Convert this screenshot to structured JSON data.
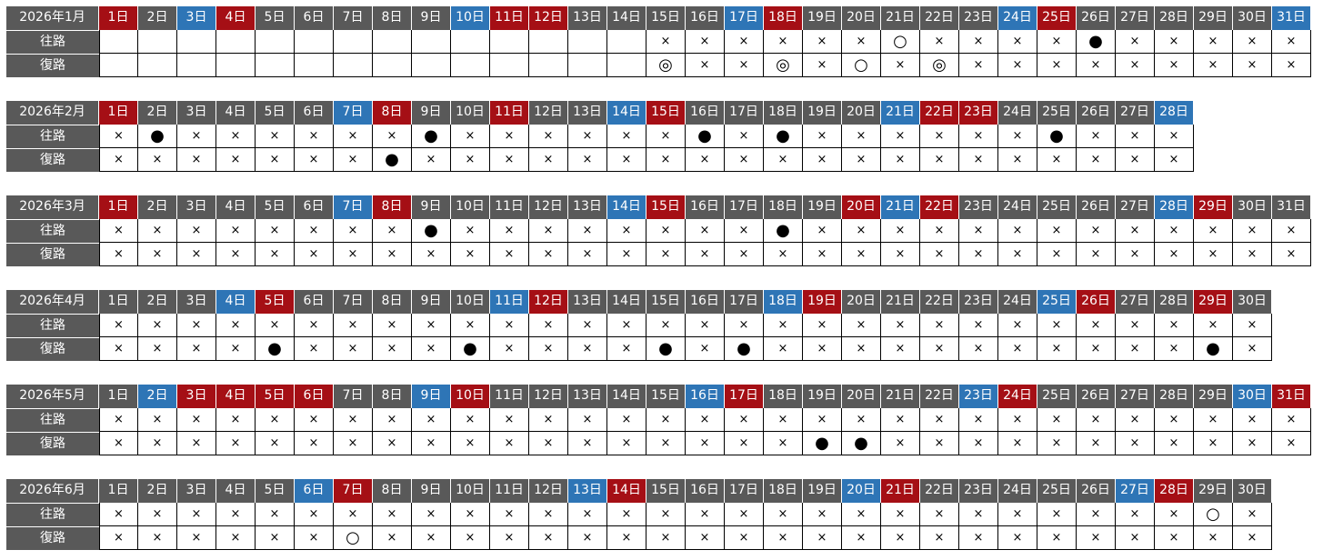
{
  "colors": {
    "weekday": "#595959",
    "saturday": "#2e75b6",
    "holiday": "#a50f15"
  },
  "months": [
    {
      "title": "2026年1月",
      "days": [
        "1日",
        "2日",
        "3日",
        "4日",
        "5日",
        "6日",
        "7日",
        "8日",
        "9日",
        "10日",
        "11日",
        "12日",
        "13日",
        "14日",
        "15日",
        "16日",
        "17日",
        "18日",
        "19日",
        "20日",
        "21日",
        "22日",
        "23日",
        "24日",
        "25日",
        "26日",
        "27日",
        "28日",
        "29日",
        "30日",
        "31日"
      ],
      "day_types": [
        "holiday",
        "weekday",
        "saturday",
        "holiday",
        "weekday",
        "weekday",
        "weekday",
        "weekday",
        "weekday",
        "saturday",
        "holiday",
        "holiday",
        "weekday",
        "weekday",
        "weekday",
        "weekday",
        "saturday",
        "holiday",
        "weekday",
        "weekday",
        "weekday",
        "weekday",
        "weekday",
        "saturday",
        "holiday",
        "weekday",
        "weekday",
        "weekday",
        "weekday",
        "weekday",
        "saturday"
      ],
      "rows": [
        {
          "label": "往路",
          "cells": [
            null,
            null,
            null,
            null,
            null,
            null,
            null,
            null,
            null,
            null,
            null,
            null,
            null,
            null,
            "×",
            "×",
            "×",
            "×",
            "×",
            "×",
            "○",
            "×",
            "×",
            "×",
            "×",
            "●",
            "×",
            "×",
            "×",
            "×",
            "×"
          ]
        },
        {
          "label": "復路",
          "cells": [
            null,
            null,
            null,
            null,
            null,
            null,
            null,
            null,
            null,
            null,
            null,
            null,
            null,
            null,
            "◎",
            "×",
            "×",
            "◎",
            "×",
            "○",
            "×",
            "◎",
            "×",
            "×",
            "×",
            "×",
            "×",
            "×",
            "×",
            "×",
            "×"
          ]
        }
      ]
    },
    {
      "title": "2026年2月",
      "days": [
        "1日",
        "2日",
        "3日",
        "4日",
        "5日",
        "6日",
        "7日",
        "8日",
        "9日",
        "10日",
        "11日",
        "12日",
        "13日",
        "14日",
        "15日",
        "16日",
        "17日",
        "18日",
        "19日",
        "20日",
        "21日",
        "22日",
        "23日",
        "24日",
        "25日",
        "26日",
        "27日",
        "28日"
      ],
      "day_types": [
        "holiday",
        "weekday",
        "weekday",
        "weekday",
        "weekday",
        "weekday",
        "saturday",
        "holiday",
        "weekday",
        "weekday",
        "holiday",
        "weekday",
        "weekday",
        "saturday",
        "holiday",
        "weekday",
        "weekday",
        "weekday",
        "weekday",
        "weekday",
        "saturday",
        "holiday",
        "holiday",
        "weekday",
        "weekday",
        "weekday",
        "weekday",
        "saturday"
      ],
      "rows": [
        {
          "label": "往路",
          "cells": [
            "×",
            "●",
            "×",
            "×",
            "×",
            "×",
            "×",
            "×",
            "●",
            "×",
            "×",
            "×",
            "×",
            "×",
            "×",
            "●",
            "×",
            "●",
            "×",
            "×",
            "×",
            "×",
            "×",
            "×",
            "●",
            "×",
            "×",
            "×"
          ]
        },
        {
          "label": "復路",
          "cells": [
            "×",
            "×",
            "×",
            "×",
            "×",
            "×",
            "×",
            "●",
            "×",
            "×",
            "×",
            "×",
            "×",
            "×",
            "×",
            "×",
            "×",
            "×",
            "×",
            "×",
            "×",
            "×",
            "×",
            "×",
            "×",
            "×",
            "×",
            "×"
          ]
        }
      ]
    },
    {
      "title": "2026年3月",
      "days": [
        "1日",
        "2日",
        "3日",
        "4日",
        "5日",
        "6日",
        "7日",
        "8日",
        "9日",
        "10日",
        "11日",
        "12日",
        "13日",
        "14日",
        "15日",
        "16日",
        "17日",
        "18日",
        "19日",
        "20日",
        "21日",
        "22日",
        "23日",
        "24日",
        "25日",
        "26日",
        "27日",
        "28日",
        "29日",
        "30日",
        "31日"
      ],
      "day_types": [
        "holiday",
        "weekday",
        "weekday",
        "weekday",
        "weekday",
        "weekday",
        "saturday",
        "holiday",
        "weekday",
        "weekday",
        "weekday",
        "weekday",
        "weekday",
        "saturday",
        "holiday",
        "weekday",
        "weekday",
        "weekday",
        "weekday",
        "holiday",
        "saturday",
        "holiday",
        "weekday",
        "weekday",
        "weekday",
        "weekday",
        "weekday",
        "saturday",
        "holiday",
        "weekday",
        "weekday"
      ],
      "rows": [
        {
          "label": "往路",
          "cells": [
            "×",
            "×",
            "×",
            "×",
            "×",
            "×",
            "×",
            "×",
            "●",
            "×",
            "×",
            "×",
            "×",
            "×",
            "×",
            "×",
            "×",
            "●",
            "×",
            "×",
            "×",
            "×",
            "×",
            "×",
            "×",
            "×",
            "×",
            "×",
            "×",
            "×",
            "×"
          ]
        },
        {
          "label": "復路",
          "cells": [
            "×",
            "×",
            "×",
            "×",
            "×",
            "×",
            "×",
            "×",
            "×",
            "×",
            "×",
            "×",
            "×",
            "×",
            "×",
            "×",
            "×",
            "×",
            "×",
            "×",
            "×",
            "×",
            "×",
            "×",
            "×",
            "×",
            "×",
            "×",
            "×",
            "×",
            "×"
          ]
        }
      ]
    },
    {
      "title": "2026年4月",
      "days": [
        "1日",
        "2日",
        "3日",
        "4日",
        "5日",
        "6日",
        "7日",
        "8日",
        "9日",
        "10日",
        "11日",
        "12日",
        "13日",
        "14日",
        "15日",
        "16日",
        "17日",
        "18日",
        "19日",
        "20日",
        "21日",
        "22日",
        "23日",
        "24日",
        "25日",
        "26日",
        "27日",
        "28日",
        "29日",
        "30日"
      ],
      "day_types": [
        "weekday",
        "weekday",
        "weekday",
        "saturday",
        "holiday",
        "weekday",
        "weekday",
        "weekday",
        "weekday",
        "weekday",
        "saturday",
        "holiday",
        "weekday",
        "weekday",
        "weekday",
        "weekday",
        "weekday",
        "saturday",
        "holiday",
        "weekday",
        "weekday",
        "weekday",
        "weekday",
        "weekday",
        "saturday",
        "holiday",
        "weekday",
        "weekday",
        "holiday",
        "weekday"
      ],
      "rows": [
        {
          "label": "往路",
          "cells": [
            "×",
            "×",
            "×",
            "×",
            "×",
            "×",
            "×",
            "×",
            "×",
            "×",
            "×",
            "×",
            "×",
            "×",
            "×",
            "×",
            "×",
            "×",
            "×",
            "×",
            "×",
            "×",
            "×",
            "×",
            "×",
            "×",
            "×",
            "×",
            "×",
            "×"
          ]
        },
        {
          "label": "復路",
          "cells": [
            "×",
            "×",
            "×",
            "×",
            "●",
            "×",
            "×",
            "×",
            "×",
            "●",
            "×",
            "×",
            "×",
            "×",
            "●",
            "×",
            "●",
            "×",
            "×",
            "×",
            "×",
            "×",
            "×",
            "×",
            "×",
            "×",
            "×",
            "×",
            "●",
            "×"
          ]
        }
      ]
    },
    {
      "title": "2026年5月",
      "days": [
        "1日",
        "2日",
        "3日",
        "4日",
        "5日",
        "6日",
        "7日",
        "8日",
        "9日",
        "10日",
        "11日",
        "12日",
        "13日",
        "14日",
        "15日",
        "16日",
        "17日",
        "18日",
        "19日",
        "20日",
        "21日",
        "22日",
        "23日",
        "24日",
        "25日",
        "26日",
        "27日",
        "28日",
        "29日",
        "30日",
        "31日"
      ],
      "day_types": [
        "weekday",
        "saturday",
        "holiday",
        "holiday",
        "holiday",
        "holiday",
        "weekday",
        "weekday",
        "saturday",
        "holiday",
        "weekday",
        "weekday",
        "weekday",
        "weekday",
        "weekday",
        "saturday",
        "holiday",
        "weekday",
        "weekday",
        "weekday",
        "weekday",
        "weekday",
        "saturday",
        "holiday",
        "weekday",
        "weekday",
        "weekday",
        "weekday",
        "weekday",
        "saturday",
        "holiday"
      ],
      "rows": [
        {
          "label": "往路",
          "cells": [
            "×",
            "×",
            "×",
            "×",
            "×",
            "×",
            "×",
            "×",
            "×",
            "×",
            "×",
            "×",
            "×",
            "×",
            "×",
            "×",
            "×",
            "×",
            "×",
            "×",
            "×",
            "×",
            "×",
            "×",
            "×",
            "×",
            "×",
            "×",
            "×",
            "×",
            "×"
          ]
        },
        {
          "label": "復路",
          "cells": [
            "×",
            "×",
            "×",
            "×",
            "×",
            "×",
            "×",
            "×",
            "×",
            "×",
            "×",
            "×",
            "×",
            "×",
            "×",
            "×",
            "×",
            "×",
            "●",
            "●",
            "×",
            "×",
            "×",
            "×",
            "×",
            "×",
            "×",
            "×",
            "×",
            "×",
            "×"
          ]
        }
      ]
    },
    {
      "title": "2026年6月",
      "days": [
        "1日",
        "2日",
        "3日",
        "4日",
        "5日",
        "6日",
        "7日",
        "8日",
        "9日",
        "10日",
        "11日",
        "12日",
        "13日",
        "14日",
        "15日",
        "16日",
        "17日",
        "18日",
        "19日",
        "20日",
        "21日",
        "22日",
        "23日",
        "24日",
        "25日",
        "26日",
        "27日",
        "28日",
        "29日",
        "30日"
      ],
      "day_types": [
        "weekday",
        "weekday",
        "weekday",
        "weekday",
        "weekday",
        "saturday",
        "holiday",
        "weekday",
        "weekday",
        "weekday",
        "weekday",
        "weekday",
        "saturday",
        "holiday",
        "weekday",
        "weekday",
        "weekday",
        "weekday",
        "weekday",
        "saturday",
        "holiday",
        "weekday",
        "weekday",
        "weekday",
        "weekday",
        "weekday",
        "saturday",
        "holiday",
        "weekday",
        "weekday"
      ],
      "rows": [
        {
          "label": "往路",
          "cells": [
            "×",
            "×",
            "×",
            "×",
            "×",
            "×",
            "×",
            "×",
            "×",
            "×",
            "×",
            "×",
            "×",
            "×",
            "×",
            "×",
            "×",
            "×",
            "×",
            "×",
            "×",
            "×",
            "×",
            "×",
            "×",
            "×",
            "×",
            "×",
            "○",
            "×"
          ]
        },
        {
          "label": "復路",
          "cells": [
            "×",
            "×",
            "×",
            "×",
            "×",
            "×",
            "○",
            "×",
            "×",
            "×",
            "×",
            "×",
            "×",
            "×",
            "×",
            "×",
            "×",
            "×",
            "×",
            "×",
            "×",
            "×",
            "×",
            "×",
            "×",
            "×",
            "×",
            "×",
            "×",
            "×"
          ]
        }
      ]
    }
  ]
}
